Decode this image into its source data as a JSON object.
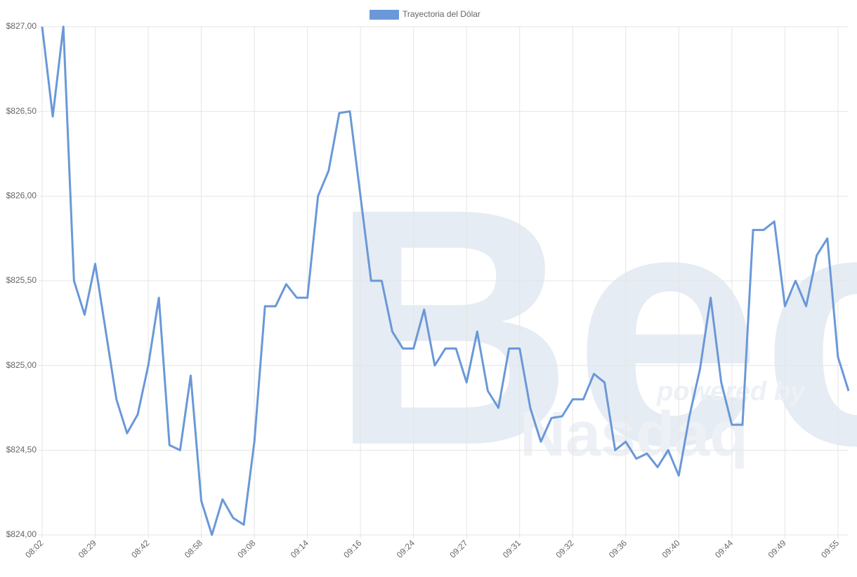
{
  "chart_data": {
    "type": "line",
    "legend_position": "top",
    "watermark": {
      "brand": "Bec",
      "tagline": "powered by",
      "partner": "Nasdaq"
    },
    "categories": [
      "08:02",
      null,
      null,
      null,
      null,
      "08:29",
      null,
      null,
      null,
      null,
      "08:42",
      null,
      null,
      null,
      null,
      "08:58",
      null,
      null,
      null,
      null,
      "09:08",
      null,
      null,
      null,
      null,
      "09:14",
      null,
      null,
      null,
      null,
      "09:16",
      null,
      null,
      null,
      null,
      "09:24",
      null,
      null,
      null,
      null,
      "09:27",
      null,
      null,
      null,
      null,
      "09:31",
      null,
      null,
      null,
      null,
      "09:32",
      null,
      null,
      null,
      null,
      "09:36",
      null,
      null,
      null,
      null,
      "09:40",
      null,
      null,
      null,
      null,
      "09:44",
      null,
      null,
      null,
      null,
      "09:49",
      null,
      null,
      null,
      null,
      "09:55",
      null
    ],
    "series": [
      {
        "name": "Trayectoria del Dólar",
        "color": "#6a98d8",
        "values": [
          827.0,
          826.47,
          827.0,
          825.5,
          825.3,
          825.6,
          825.2,
          824.8,
          824.6,
          824.71,
          825.0,
          825.4,
          824.53,
          824.5,
          824.94,
          824.2,
          824.0,
          824.21,
          824.1,
          824.06,
          824.55,
          825.35,
          825.35,
          825.48,
          825.4,
          825.4,
          826.0,
          826.15,
          826.49,
          826.5,
          826.0,
          825.5,
          825.5,
          825.2,
          825.1,
          825.1,
          825.33,
          825.0,
          825.1,
          825.1,
          824.9,
          825.2,
          824.85,
          824.75,
          825.1,
          825.1,
          824.75,
          824.55,
          824.69,
          824.7,
          824.8,
          824.8,
          824.95,
          824.9,
          824.5,
          824.55,
          824.45,
          824.48,
          824.4,
          824.5,
          824.35,
          824.7,
          824.98,
          825.4,
          824.9,
          824.65,
          824.65,
          825.8,
          825.8,
          825.85,
          825.35,
          825.5,
          825.35,
          825.65,
          825.75,
          825.05,
          824.85
        ]
      }
    ],
    "ylim": [
      824,
      827
    ],
    "yticks": [
      {
        "value": 824,
        "label": "$824,00"
      },
      {
        "value": 824.5,
        "label": "$824,50"
      },
      {
        "value": 825,
        "label": "$825,00"
      },
      {
        "value": 825.5,
        "label": "$825,50"
      },
      {
        "value": 826,
        "label": "$826,00"
      },
      {
        "value": 826.5,
        "label": "$826,50"
      },
      {
        "value": 827,
        "label": "$827,00"
      }
    ],
    "grid": true
  }
}
